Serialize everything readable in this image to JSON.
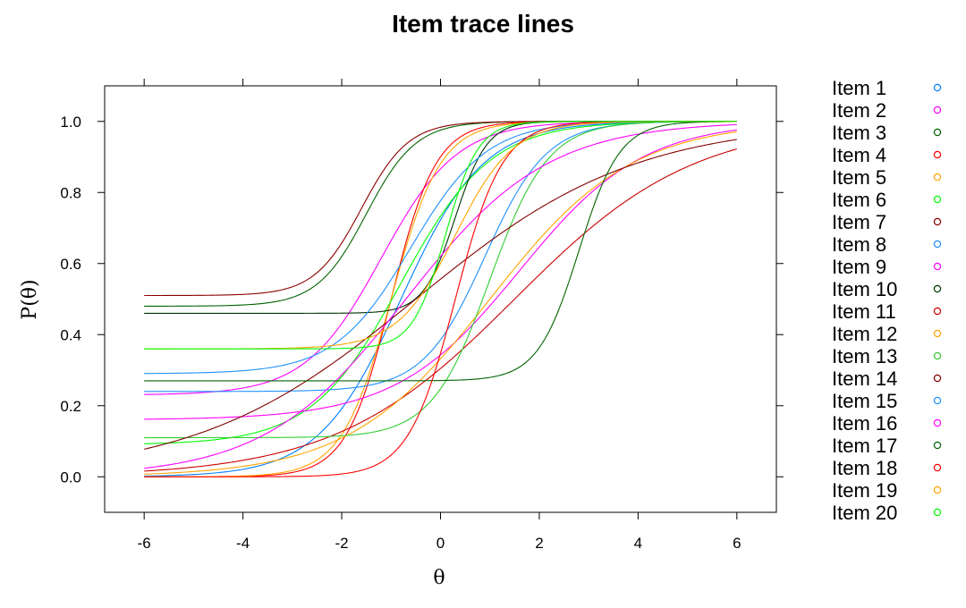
{
  "chart_data": {
    "type": "line",
    "title": "Item trace lines",
    "xlabel": "θ",
    "ylabel": "P(θ)",
    "xlim": [
      -6.8,
      6.8
    ],
    "ylim": [
      -0.1,
      1.1
    ],
    "x_ticks": [
      -6,
      -4,
      -2,
      0,
      2,
      4,
      6
    ],
    "y_ticks": [
      0.0,
      0.2,
      0.4,
      0.6,
      0.8,
      1.0
    ],
    "x_tick_labels": [
      "-6",
      "-4",
      "-2",
      "0",
      "2",
      "4",
      "6"
    ],
    "y_tick_labels": [
      "0.0",
      "0.2",
      "0.4",
      "0.6",
      "0.8",
      "1.0"
    ],
    "grid": false,
    "legend_position": "right",
    "x_range": [
      -6,
      6
    ],
    "series": [
      {
        "name": "Item 1",
        "color": "#0080FF",
        "params": {
          "a": 1.2,
          "b": -0.8,
          "c": 0.0
        }
      },
      {
        "name": "Item 2",
        "color": "#FF00FF",
        "params": {
          "a": 1.3,
          "b": -1.2,
          "c": 0.23
        }
      },
      {
        "name": "Item 3",
        "color": "#006400",
        "params": {
          "a": 2.0,
          "b": -1.5,
          "c": 0.48
        }
      },
      {
        "name": "Item 4",
        "color": "#FF0000",
        "params": {
          "a": 2.2,
          "b": -1.0,
          "c": 0.0
        }
      },
      {
        "name": "Item 5",
        "color": "#FFA500",
        "params": {
          "a": 2.0,
          "b": -1.0,
          "c": 0.0
        }
      },
      {
        "name": "Item 6",
        "color": "#00FF00",
        "params": {
          "a": 1.1,
          "b": -0.8,
          "c": 0.09
        }
      },
      {
        "name": "Item 7",
        "color": "#8B0000",
        "params": {
          "a": 2.1,
          "b": -1.6,
          "c": 0.51
        }
      },
      {
        "name": "Item 8",
        "color": "#1E90FF",
        "params": {
          "a": 1.6,
          "b": 0.9,
          "c": 0.24
        }
      },
      {
        "name": "Item 9",
        "color": "#FF00FF",
        "params": {
          "a": 0.8,
          "b": 1.6,
          "c": 0.16
        }
      },
      {
        "name": "Item 10",
        "color": "#003300",
        "params": {
          "a": 3.1,
          "b": 0.3,
          "c": 0.46
        }
      },
      {
        "name": "Item 11",
        "color": "#CC0000",
        "params": {
          "a": 0.55,
          "b": 1.5,
          "c": 0.0
        }
      },
      {
        "name": "Item 12",
        "color": "#FFA500",
        "params": {
          "a": 0.7,
          "b": 1.0,
          "c": 0.0
        }
      },
      {
        "name": "Item 13",
        "color": "#32CD32",
        "params": {
          "a": 1.7,
          "b": 1.0,
          "c": 0.11
        }
      },
      {
        "name": "Item 14",
        "color": "#800000",
        "params": {
          "a": 0.45,
          "b": -0.5,
          "c": 0.0
        }
      },
      {
        "name": "Item 15",
        "color": "#1E90FF",
        "params": {
          "a": 1.3,
          "b": -0.6,
          "c": 0.29
        }
      },
      {
        "name": "Item 16",
        "color": "#FF00FF",
        "params": {
          "a": 0.7,
          "b": -0.7,
          "c": 0.0
        }
      },
      {
        "name": "Item 17",
        "color": "#006400",
        "params": {
          "a": 2.4,
          "b": 2.8,
          "c": 0.27
        }
      },
      {
        "name": "Item 18",
        "color": "#FF0000",
        "params": {
          "a": 2.1,
          "b": 0.3,
          "c": 0.0
        }
      },
      {
        "name": "Item 19",
        "color": "#FFA500",
        "params": {
          "a": 1.7,
          "b": 0.3,
          "c": 0.36
        }
      },
      {
        "name": "Item 20",
        "color": "#00FF00",
        "params": {
          "a": 3.0,
          "b": 0.1,
          "c": 0.36
        }
      }
    ]
  }
}
